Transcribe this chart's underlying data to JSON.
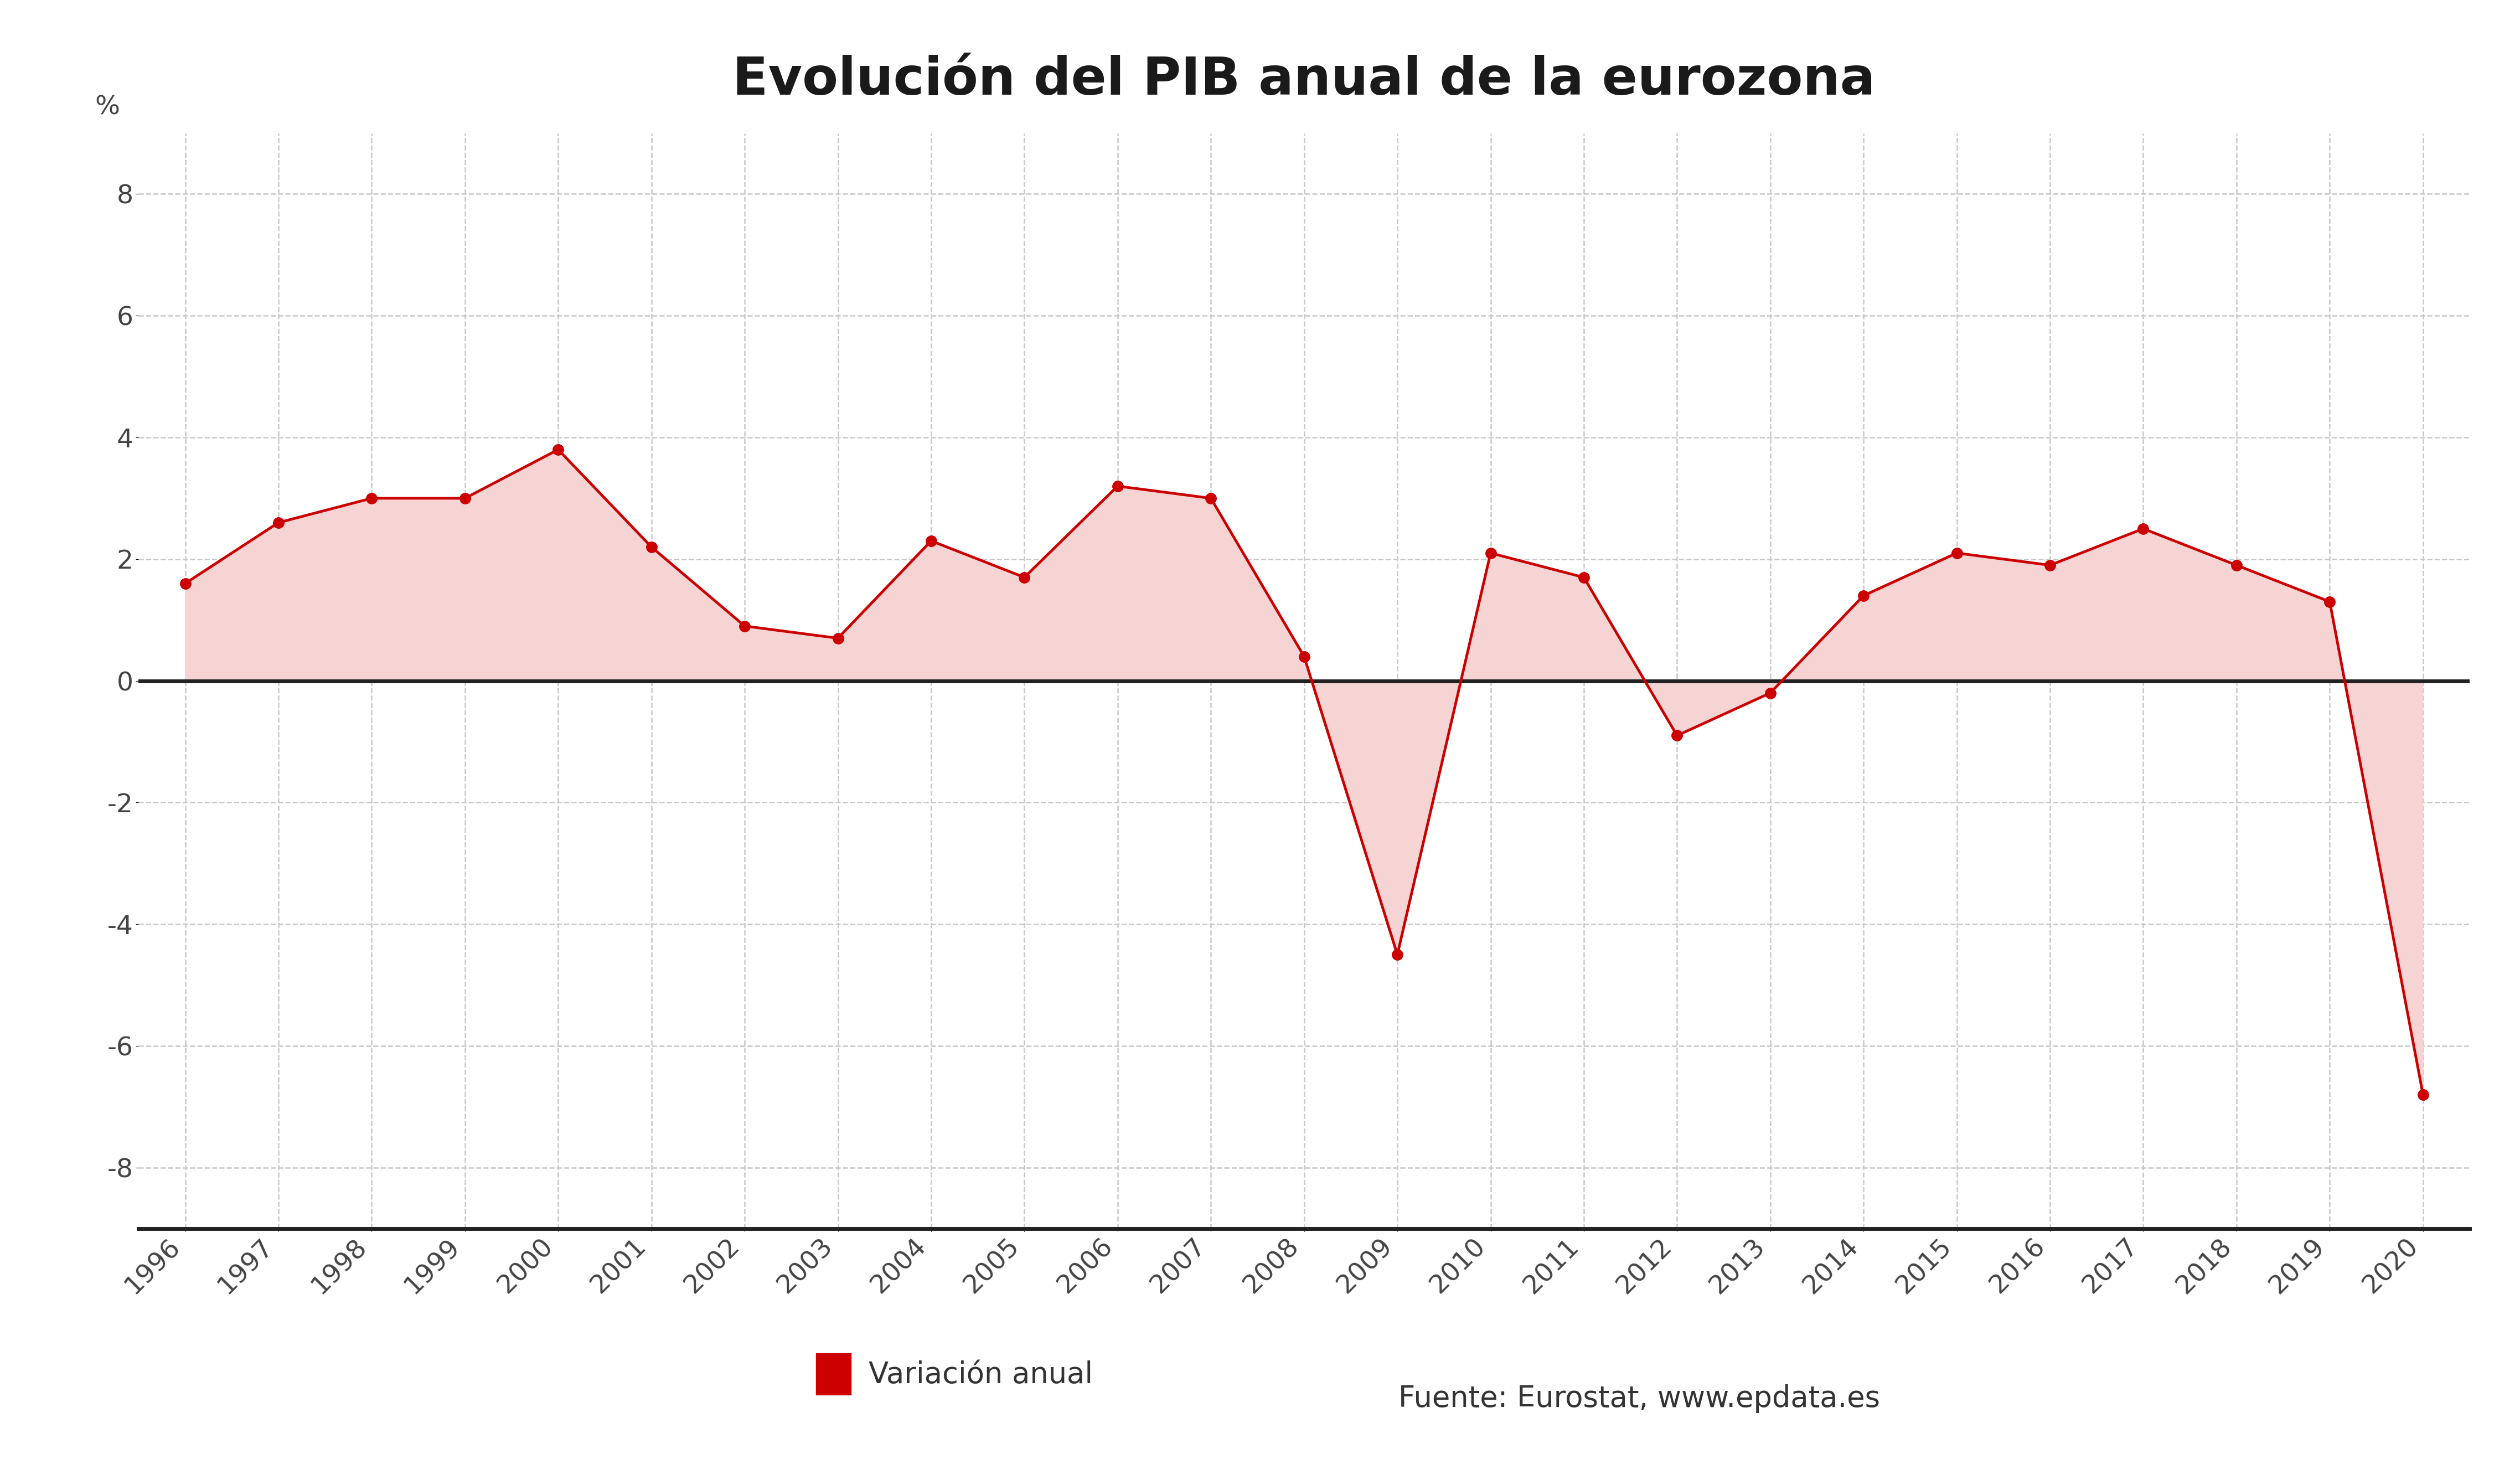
{
  "title": "Evolución del PIB anual de la eurozona",
  "years": [
    1996,
    1997,
    1998,
    1999,
    2000,
    2001,
    2002,
    2003,
    2004,
    2005,
    2006,
    2007,
    2008,
    2009,
    2010,
    2011,
    2012,
    2013,
    2014,
    2015,
    2016,
    2017,
    2018,
    2019,
    2020
  ],
  "values": [
    1.6,
    2.6,
    3.0,
    3.0,
    3.8,
    2.2,
    0.9,
    0.7,
    2.3,
    1.7,
    3.2,
    3.0,
    0.4,
    -4.5,
    2.1,
    1.7,
    -0.9,
    -0.2,
    1.4,
    2.1,
    1.9,
    2.5,
    1.9,
    1.3,
    -6.8
  ],
  "line_color": "#cc0000",
  "fill_color": "#f7d4d4",
  "background_color": "#ffffff",
  "grid_color": "#c8c8c8",
  "zero_line_color": "#222222",
  "border_color": "#222222",
  "ylabel": "%",
  "ylim": [
    -9,
    9
  ],
  "yticks": [
    -8,
    -6,
    -4,
    -2,
    0,
    2,
    4,
    6,
    8
  ],
  "title_fontsize": 68,
  "tick_fontsize": 34,
  "ylabel_fontsize": 34,
  "legend_label": "Variación anual",
  "legend_source": "Fuente: Eurostat, www.epdata.es",
  "legend_color": "#cc0000",
  "marker_size": 14,
  "line_width": 3.5
}
